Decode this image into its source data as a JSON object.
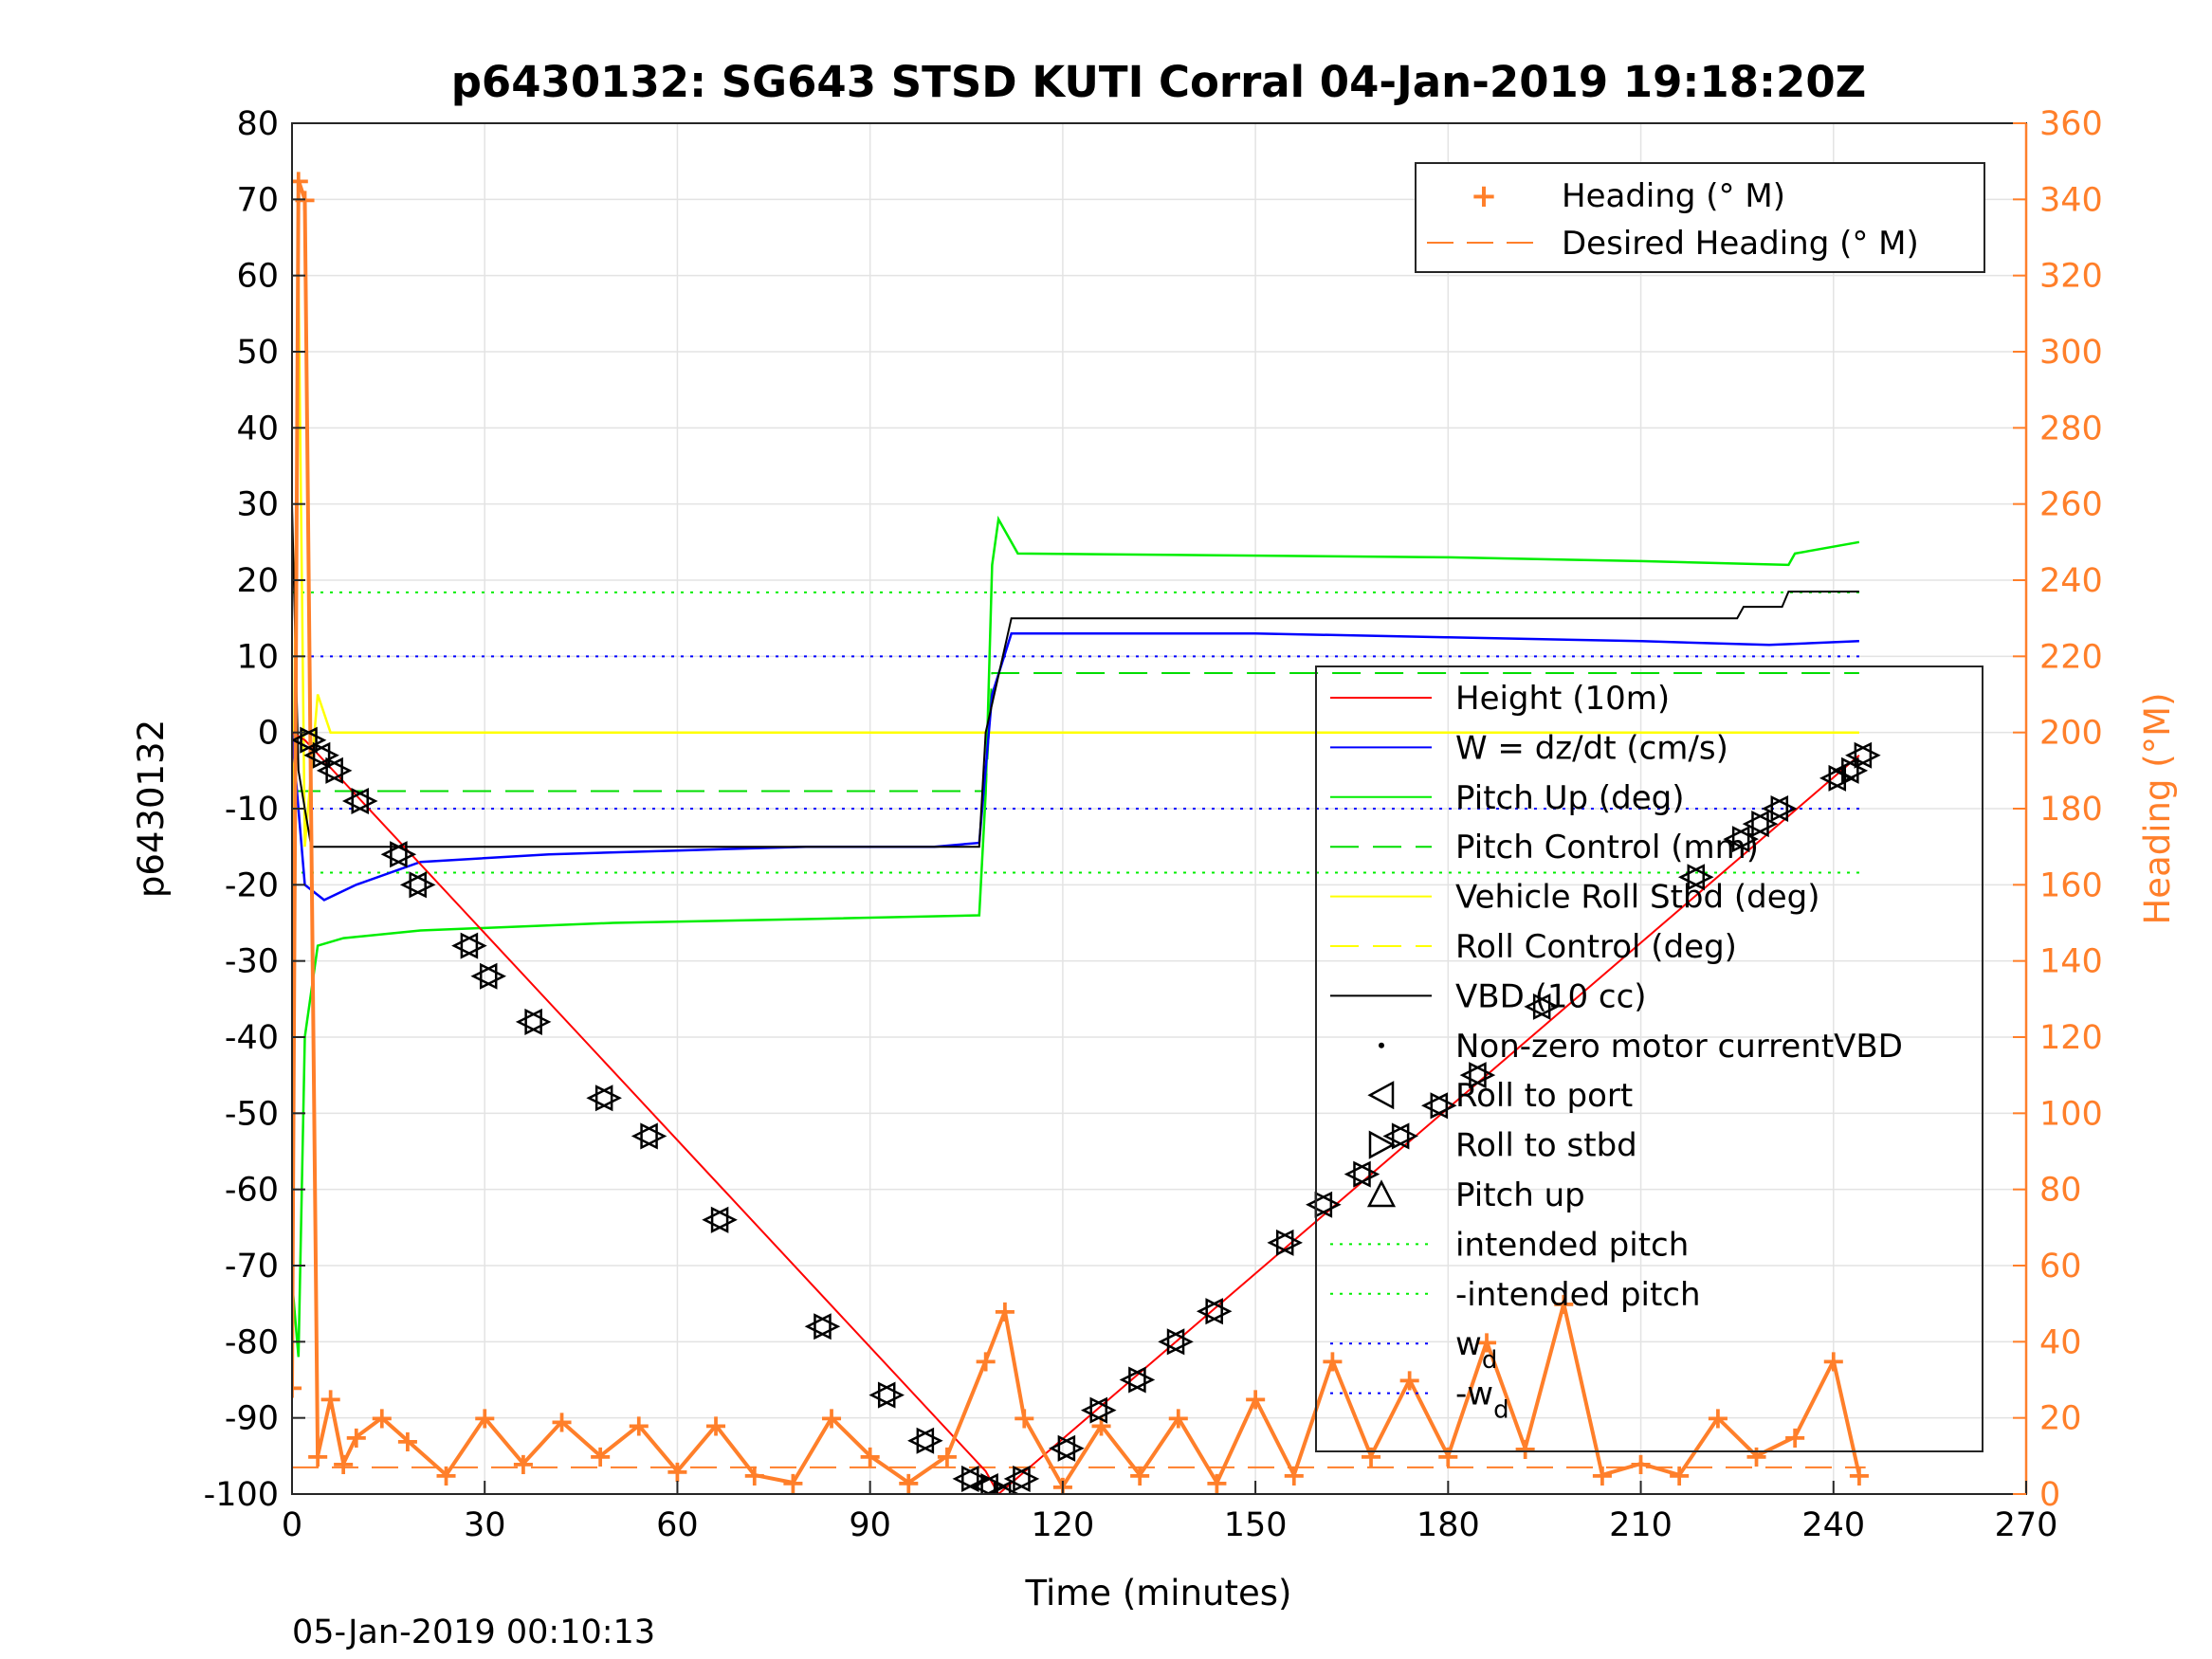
{
  "chart_data": {
    "type": "line",
    "title": "p6430132: SG643 STSD KUTI Corral 04-Jan-2019 19:18:20Z",
    "xlabel": "Time (minutes)",
    "ylabel": "p6430132",
    "y2label": "Heading (°M)",
    "footer": "05-Jan-2019 00:10:13",
    "xlim": [
      0,
      270
    ],
    "ylim": [
      -100,
      80
    ],
    "y2lim": [
      0,
      360
    ],
    "xticks": [
      "0",
      "30",
      "60",
      "90",
      "120",
      "150",
      "180",
      "210",
      "240",
      "270"
    ],
    "yticks": [
      "-100",
      "-90",
      "-80",
      "-70",
      "-60",
      "-50",
      "-40",
      "-30",
      "-20",
      "-10",
      "0",
      "10",
      "20",
      "30",
      "40",
      "50",
      "60",
      "70",
      "80"
    ],
    "y2ticks": [
      "0",
      "20",
      "40",
      "60",
      "80",
      "100",
      "120",
      "140",
      "160",
      "180",
      "200",
      "220",
      "240",
      "260",
      "280",
      "300",
      "320",
      "340",
      "360"
    ],
    "grid": true,
    "legend_heading": {
      "placement": "top-right",
      "entries": [
        "Heading (° M)",
        "Desired Heading (° M)"
      ]
    },
    "legend_main": {
      "placement": "center-right",
      "entries": [
        {
          "label": "Height (10m)",
          "style": "red-line"
        },
        {
          "label": "W = dz/dt (cm/s)",
          "style": "blue-line"
        },
        {
          "label": "Pitch Up (deg)",
          "style": "green-line"
        },
        {
          "label": "Pitch Control (mm)",
          "style": "green-dash"
        },
        {
          "label": "Vehicle Roll Stbd (deg)",
          "style": "yellow-line"
        },
        {
          "label": "Roll Control (deg)",
          "style": "yellow-dash"
        },
        {
          "label": "VBD (10 cc)",
          "style": "black-line"
        },
        {
          "label": "Non-zero motor currentVBD",
          "style": "dot"
        },
        {
          "label": "Roll to port",
          "style": "tri-left"
        },
        {
          "label": "Roll to stbd",
          "style": "tri-right"
        },
        {
          "label": "Pitch up",
          "style": "tri-up"
        },
        {
          "label": "intended pitch",
          "style": "green-dot"
        },
        {
          "label": "-intended pitch",
          "style": "green-dot"
        },
        {
          "label": "w",
          "sub": "d",
          "style": "blue-dot"
        },
        {
          "label": "-w",
          "sub": "d",
          "style": "blue-dot"
        }
      ]
    },
    "colors": {
      "height": "#ff0000",
      "w": "#0000ff",
      "pitch": "#00ee00",
      "roll": "#ffff00",
      "vbd": "#000000",
      "heading": "#ff7f2a"
    },
    "reference_lines": {
      "intended_pitch": 18.4,
      "neg_intended_pitch": -18.4,
      "w_d": 10,
      "neg_w_d": -10,
      "desired_heading": 7
    },
    "series": [
      {
        "name": "Height (10m)",
        "x": [
          0,
          2,
          108,
          110,
          244
        ],
        "y": [
          0,
          -1,
          -97,
          -100,
          -3
        ]
      },
      {
        "name": "W = dz/dt (cm/s)",
        "x": [
          0,
          2,
          5,
          10,
          20,
          40,
          60,
          80,
          100,
          107,
          109,
          112,
          120,
          150,
          180,
          210,
          230,
          244
        ],
        "y": [
          0,
          -20,
          -22,
          -20,
          -17,
          -16,
          -15.5,
          -15,
          -15,
          -14.5,
          5,
          13,
          13,
          13,
          12.5,
          12,
          11.5,
          12
        ]
      },
      {
        "name": "Pitch Up (deg)",
        "x": [
          0,
          1,
          2,
          4,
          8,
          20,
          50,
          80,
          107,
          108,
          109,
          110,
          113,
          140,
          180,
          210,
          233,
          234,
          244
        ],
        "y": [
          -72,
          -82,
          -40,
          -28,
          -27,
          -26,
          -25,
          -24.5,
          -24,
          -8,
          22,
          28,
          23.5,
          23.3,
          23,
          22.5,
          22,
          23.5,
          25
        ]
      },
      {
        "name": "Pitch Control (mm)",
        "x": [
          0,
          108,
          109,
          244
        ],
        "y": [
          -7.7,
          -7.7,
          7.8,
          7.8
        ]
      },
      {
        "name": "Vehicle Roll Stbd (deg)",
        "x": [
          0,
          1,
          2,
          4,
          6,
          10,
          30,
          60,
          90,
          107,
          110,
          140,
          180,
          210,
          240,
          244
        ],
        "y": [
          -30,
          60,
          -15,
          5,
          0,
          0,
          0,
          0,
          0,
          0,
          0,
          0,
          0,
          0,
          0,
          0
        ]
      },
      {
        "name": "VBD (10 cc)",
        "x": [
          0,
          1,
          2,
          3,
          107,
          108,
          112,
          225,
          226,
          232,
          233,
          244
        ],
        "y": [
          30,
          -5,
          -10,
          -15,
          -15,
          0,
          15,
          15,
          16.5,
          16.5,
          18.5,
          18.5
        ]
      },
      {
        "name": "Roll to port",
        "x": [
          2,
          4,
          6,
          10,
          16,
          19,
          27,
          30,
          37,
          48,
          55,
          66,
          82,
          92,
          98,
          105,
          108,
          110,
          113,
          120,
          125,
          131,
          137,
          143,
          154,
          160,
          166,
          172,
          178,
          184,
          194,
          218,
          225,
          228,
          231,
          240,
          242,
          244
        ],
        "y": [
          -1,
          -3,
          -5,
          -9,
          -16,
          -20,
          -28,
          -32,
          -38,
          -48,
          -53,
          -64,
          -78,
          -87,
          -93,
          -98,
          -99,
          -100,
          -98,
          -94,
          -89,
          -85,
          -80,
          -76,
          -67,
          -62,
          -58,
          -53,
          -49,
          -45,
          -36,
          -19,
          -14,
          -12,
          -10,
          -6,
          -5,
          -3
        ]
      },
      {
        "name": "Heading (° M)",
        "x": [
          0,
          1,
          2,
          4,
          6,
          8,
          10,
          14,
          18,
          24,
          30,
          36,
          42,
          48,
          54,
          60,
          66,
          72,
          78,
          84,
          90,
          96,
          102,
          108,
          111,
          114,
          120,
          126,
          132,
          138,
          144,
          150,
          156,
          162,
          168,
          174,
          180,
          186,
          192,
          198,
          204,
          210,
          216,
          222,
          228,
          234,
          240,
          244
        ],
        "y": [
          28,
          345,
          340,
          10,
          25,
          8,
          15,
          20,
          14,
          5,
          20,
          8,
          19,
          10,
          18,
          6,
          18,
          5,
          3,
          20,
          10,
          3,
          10,
          35,
          48,
          20,
          2,
          18,
          5,
          20,
          3,
          25,
          5,
          35,
          10,
          30,
          10,
          40,
          12,
          50,
          5,
          8,
          5,
          20,
          10,
          15,
          35,
          5
        ]
      }
    ]
  }
}
